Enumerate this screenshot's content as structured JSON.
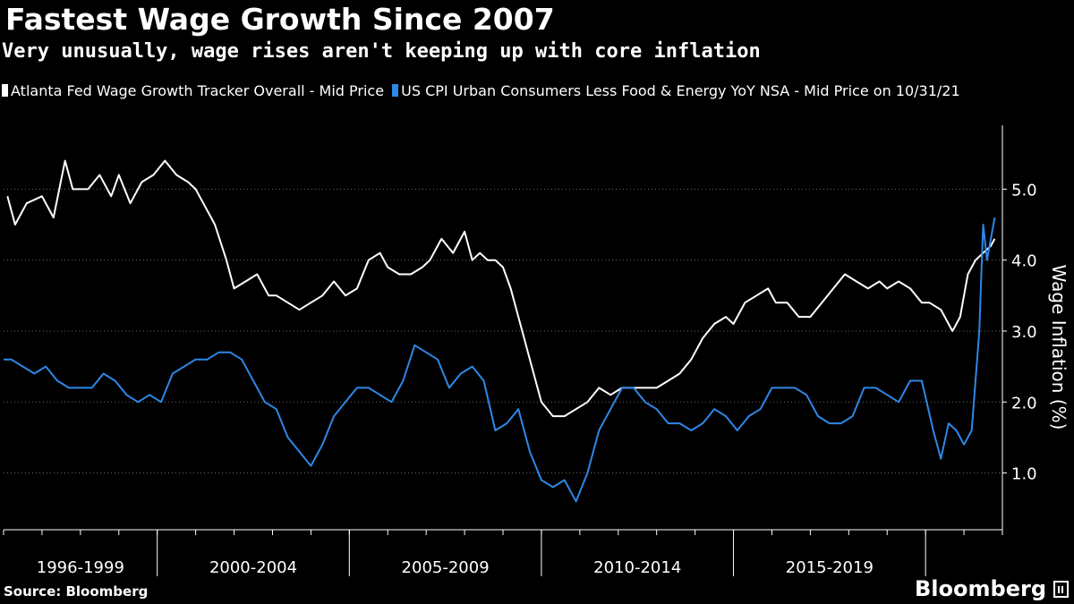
{
  "header": {
    "title": "Fastest Wage Growth Since 2007",
    "subtitle": "Very unusually, wage rises aren't keeping up with core inflation"
  },
  "footer": {
    "source": "Source: Bloomberg",
    "brand": "Bloomberg"
  },
  "colors": {
    "background": "#000000",
    "wage_series": "#ffffff",
    "cpi_series": "#2d88e6",
    "grid": "#6a6a6a"
  },
  "chart_data": {
    "type": "line",
    "title": "Fastest Wage Growth Since 2007",
    "subtitle": "Very unusually, wage rises aren't keeping up with core inflation",
    "ylabel": "Wage Inflation (%)",
    "xlabel": "",
    "ylim": [
      0.2,
      5.9
    ],
    "xlim": [
      1996.0,
      2022.0
    ],
    "yticks": [
      1.0,
      2.0,
      3.0,
      4.0,
      5.0
    ],
    "ytick_labels": [
      "1.0",
      "2.0",
      "3.0",
      "4.0",
      "5.0"
    ],
    "x_periods": [
      {
        "label": "1996-1999",
        "start": 1996.0,
        "end": 2000.0
      },
      {
        "label": "2000-2004",
        "start": 2000.0,
        "end": 2005.0
      },
      {
        "label": "2005-2009",
        "start": 2005.0,
        "end": 2010.0
      },
      {
        "label": "2010-2014",
        "start": 2010.0,
        "end": 2015.0
      },
      {
        "label": "2015-2019",
        "start": 2015.0,
        "end": 2020.0
      },
      {
        "label": "",
        "start": 2020.0,
        "end": 2022.0
      }
    ],
    "grid": "horizontal-dotted",
    "legend": "top-left",
    "series": [
      {
        "name": "Atlanta Fed Wage Growth Tracker Overall - Mid Price",
        "color": "#ffffff",
        "x": [
          1996.1,
          1996.3,
          1996.6,
          1997.0,
          1997.3,
          1997.6,
          1997.8,
          1998.2,
          1998.5,
          1998.8,
          1999.0,
          1999.3,
          1999.6,
          1999.9,
          2000.2,
          2000.5,
          2000.8,
          2001.0,
          2001.2,
          2001.5,
          2001.8,
          2002.0,
          2002.3,
          2002.6,
          2002.9,
          2003.1,
          2003.4,
          2003.7,
          2004.0,
          2004.3,
          2004.6,
          2004.9,
          2005.2,
          2005.5,
          2005.8,
          2006.0,
          2006.3,
          2006.6,
          2006.9,
          2007.1,
          2007.4,
          2007.7,
          2008.0,
          2008.2,
          2008.4,
          2008.6,
          2008.8,
          2009.0,
          2009.2,
          2009.4,
          2009.7,
          2010.0,
          2010.3,
          2010.6,
          2010.9,
          2011.2,
          2011.5,
          2011.8,
          2012.1,
          2012.4,
          2012.7,
          2013.0,
          2013.3,
          2013.6,
          2013.9,
          2014.2,
          2014.5,
          2014.8,
          2015.0,
          2015.3,
          2015.6,
          2015.9,
          2016.1,
          2016.4,
          2016.7,
          2017.0,
          2017.3,
          2017.6,
          2017.9,
          2018.2,
          2018.5,
          2018.8,
          2019.0,
          2019.3,
          2019.6,
          2019.9,
          2020.1,
          2020.4,
          2020.7,
          2020.9,
          2021.1,
          2021.3,
          2021.5,
          2021.7,
          2021.8
        ],
        "values": [
          4.9,
          4.5,
          4.8,
          4.9,
          4.6,
          5.4,
          5.0,
          5.0,
          5.2,
          4.9,
          5.2,
          4.8,
          5.1,
          5.2,
          5.4,
          5.2,
          5.1,
          5.0,
          4.8,
          4.5,
          4.0,
          3.6,
          3.7,
          3.8,
          3.5,
          3.5,
          3.4,
          3.3,
          3.4,
          3.5,
          3.7,
          3.5,
          3.6,
          4.0,
          4.1,
          3.9,
          3.8,
          3.8,
          3.9,
          4.0,
          4.3,
          4.1,
          4.4,
          4.0,
          4.1,
          4.0,
          4.0,
          3.9,
          3.6,
          3.2,
          2.6,
          2.0,
          1.8,
          1.8,
          1.9,
          2.0,
          2.2,
          2.1,
          2.2,
          2.2,
          2.2,
          2.2,
          2.3,
          2.4,
          2.6,
          2.9,
          3.1,
          3.2,
          3.1,
          3.4,
          3.5,
          3.6,
          3.4,
          3.4,
          3.2,
          3.2,
          3.4,
          3.6,
          3.8,
          3.7,
          3.6,
          3.7,
          3.6,
          3.7,
          3.6,
          3.4,
          3.4,
          3.3,
          3.0,
          3.2,
          3.8,
          4.0,
          4.1,
          4.2,
          4.3
        ]
      },
      {
        "name": "US CPI Urban Consumers Less Food & Energy YoY NSA - Mid Price on 10/31/21",
        "color": "#2d88e6",
        "x": [
          1996.0,
          1996.2,
          1996.5,
          1996.8,
          1997.1,
          1997.4,
          1997.7,
          1998.0,
          1998.3,
          1998.6,
          1998.9,
          1999.2,
          1999.5,
          1999.8,
          2000.1,
          2000.4,
          2000.7,
          2001.0,
          2001.3,
          2001.6,
          2001.9,
          2002.2,
          2002.5,
          2002.8,
          2003.1,
          2003.4,
          2003.7,
          2004.0,
          2004.3,
          2004.6,
          2004.9,
          2005.2,
          2005.5,
          2005.8,
          2006.1,
          2006.4,
          2006.7,
          2007.0,
          2007.3,
          2007.6,
          2007.9,
          2008.2,
          2008.5,
          2008.8,
          2009.1,
          2009.4,
          2009.7,
          2010.0,
          2010.3,
          2010.6,
          2010.9,
          2011.2,
          2011.5,
          2011.8,
          2012.1,
          2012.4,
          2012.7,
          2013.0,
          2013.3,
          2013.6,
          2013.9,
          2014.2,
          2014.5,
          2014.8,
          2015.1,
          2015.4,
          2015.7,
          2016.0,
          2016.3,
          2016.6,
          2016.9,
          2017.2,
          2017.5,
          2017.8,
          2018.1,
          2018.4,
          2018.7,
          2019.0,
          2019.3,
          2019.6,
          2019.9,
          2020.2,
          2020.4,
          2020.6,
          2020.8,
          2021.0,
          2021.2,
          2021.4,
          2021.5,
          2021.6,
          2021.8
        ],
        "values": [
          2.6,
          2.6,
          2.5,
          2.4,
          2.5,
          2.3,
          2.2,
          2.2,
          2.2,
          2.4,
          2.3,
          2.1,
          2.0,
          2.1,
          2.0,
          2.4,
          2.5,
          2.6,
          2.6,
          2.7,
          2.7,
          2.6,
          2.3,
          2.0,
          1.9,
          1.5,
          1.3,
          1.1,
          1.4,
          1.8,
          2.0,
          2.2,
          2.2,
          2.1,
          2.0,
          2.3,
          2.8,
          2.7,
          2.6,
          2.2,
          2.4,
          2.5,
          2.3,
          1.6,
          1.7,
          1.9,
          1.3,
          0.9,
          0.8,
          0.9,
          0.6,
          1.0,
          1.6,
          1.9,
          2.2,
          2.2,
          2.0,
          1.9,
          1.7,
          1.7,
          1.6,
          1.7,
          1.9,
          1.8,
          1.6,
          1.8,
          1.9,
          2.2,
          2.2,
          2.2,
          2.1,
          1.8,
          1.7,
          1.7,
          1.8,
          2.2,
          2.2,
          2.1,
          2.0,
          2.3,
          2.3,
          1.6,
          1.2,
          1.7,
          1.6,
          1.4,
          1.6,
          3.0,
          4.5,
          4.0,
          4.6
        ]
      }
    ]
  }
}
